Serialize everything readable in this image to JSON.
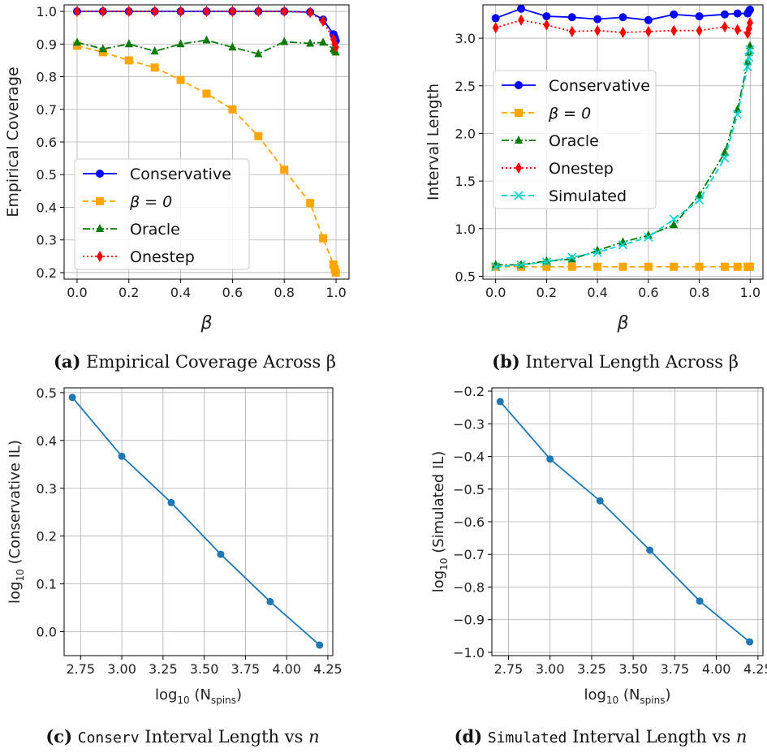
{
  "chart_data": [
    {
      "type": "line",
      "panel": "a",
      "xlabel": "β",
      "ylabel": "Empirical Coverage",
      "xlim": [
        -0.05,
        1.05
      ],
      "ylim": [
        0.18,
        1.02
      ],
      "xticks": [
        "0.0",
        "0.2",
        "0.4",
        "0.6",
        "0.8",
        "1.0"
      ],
      "yticks": [
        "0.2",
        "0.3",
        "0.4",
        "0.5",
        "0.6",
        "0.7",
        "0.8",
        "0.9",
        "1.0"
      ],
      "grid": true,
      "legend": "center-left",
      "x": [
        0,
        0.1,
        0.2,
        0.3,
        0.4,
        0.5,
        0.6,
        0.7,
        0.8,
        0.9,
        0.95,
        0.99,
        0.995,
        0.999
      ],
      "series": [
        {
          "name": "Conservative",
          "color": "#0000ff",
          "marker": "circle",
          "dash": "solid",
          "values": [
            1.0,
            1.0,
            1.0,
            1.0,
            1.0,
            1.0,
            1.0,
            1.0,
            1.0,
            0.998,
            0.975,
            0.93,
            0.92,
            0.91
          ]
        },
        {
          "name": "β = 0",
          "color": "#ffa500",
          "marker": "square",
          "dash": "dashed",
          "values": [
            0.895,
            0.875,
            0.85,
            0.828,
            0.79,
            0.748,
            0.7,
            0.618,
            0.515,
            0.413,
            0.305,
            0.225,
            0.21,
            0.2
          ]
        },
        {
          "name": "Oracle",
          "color": "#0a7a0a",
          "marker": "triangle",
          "dash": "dashdot",
          "values": [
            0.905,
            0.885,
            0.9,
            0.878,
            0.9,
            0.912,
            0.89,
            0.87,
            0.907,
            0.902,
            0.905,
            0.885,
            0.88,
            0.875
          ]
        },
        {
          "name": "Onestep",
          "color": "#ff0000",
          "marker": "diamond",
          "dash": "dotted",
          "values": [
            1.0,
            1.0,
            1.0,
            1.0,
            1.0,
            1.0,
            1.0,
            1.0,
            1.0,
            0.997,
            0.97,
            0.915,
            0.9,
            0.89
          ]
        }
      ],
      "caption": {
        "tag": "(a)",
        "text": "Empirical Coverage Across β"
      }
    },
    {
      "type": "line",
      "panel": "b",
      "xlabel": "β",
      "ylabel": "Interval Length",
      "xlim": [
        -0.05,
        1.05
      ],
      "ylim": [
        0.47,
        3.35
      ],
      "xticks": [
        "0.0",
        "0.2",
        "0.4",
        "0.6",
        "0.8",
        "1.0"
      ],
      "yticks": [
        "0.5",
        "1.0",
        "1.5",
        "2.0",
        "2.5",
        "3.0"
      ],
      "grid": true,
      "legend": "upper-left",
      "x": [
        0,
        0.1,
        0.2,
        0.3,
        0.4,
        0.5,
        0.6,
        0.7,
        0.8,
        0.9,
        0.95,
        0.99,
        0.995,
        0.999
      ],
      "series": [
        {
          "name": "Conservative",
          "color": "#0000ff",
          "marker": "circle",
          "dash": "solid",
          "values": [
            3.21,
            3.31,
            3.23,
            3.22,
            3.2,
            3.22,
            3.19,
            3.25,
            3.23,
            3.25,
            3.26,
            3.26,
            3.28,
            3.3
          ]
        },
        {
          "name": "β = 0",
          "color": "#ffa500",
          "marker": "square",
          "dash": "dashed",
          "values": [
            0.6,
            0.6,
            0.6,
            0.6,
            0.6,
            0.6,
            0.6,
            0.6,
            0.6,
            0.6,
            0.6,
            0.6,
            0.6,
            0.6
          ]
        },
        {
          "name": "Oracle",
          "color": "#0a7a0a",
          "marker": "triangle",
          "dash": "dashdot",
          "values": [
            0.62,
            0.62,
            0.66,
            0.68,
            0.77,
            0.86,
            0.93,
            1.04,
            1.35,
            1.8,
            2.25,
            2.75,
            2.85,
            2.92
          ]
        },
        {
          "name": "Onestep",
          "color": "#ff0000",
          "marker": "diamond",
          "dash": "dotted",
          "values": [
            3.11,
            3.19,
            3.14,
            3.07,
            3.08,
            3.06,
            3.07,
            3.08,
            3.08,
            3.12,
            3.09,
            3.05,
            3.1,
            3.16
          ]
        },
        {
          "name": "Simulated",
          "color": "#00d5d5",
          "marker": "x",
          "dash": "dashed",
          "values": [
            0.6,
            0.62,
            0.65,
            0.7,
            0.75,
            0.83,
            0.91,
            1.1,
            1.3,
            1.74,
            2.2,
            2.7,
            2.8,
            2.88
          ]
        }
      ],
      "caption": {
        "tag": "(b)",
        "text": "Interval Length Across β"
      }
    },
    {
      "type": "line",
      "panel": "c",
      "xlabel_parts": {
        "pre": "log",
        "sub": "10",
        "mid": " (N",
        "sub2": "spins",
        "post": ")"
      },
      "ylabel_parts": {
        "pre": "log",
        "sub": "10",
        "post": " (Conservative IL)"
      },
      "xlim": [
        2.65,
        4.28
      ],
      "ylim": [
        -0.05,
        0.51
      ],
      "xticks": [
        "2.75",
        "3.00",
        "3.25",
        "3.50",
        "3.75",
        "4.00",
        "4.25"
      ],
      "yticks": [
        "0.0",
        "0.1",
        "0.2",
        "0.3",
        "0.4",
        "0.5"
      ],
      "grid": true,
      "x": [
        2.7,
        3.0,
        3.3,
        3.6,
        3.9,
        4.2
      ],
      "series": [
        {
          "color": "#1f77b4",
          "marker": "circle",
          "dash": "solid",
          "values": [
            0.49,
            0.367,
            0.27,
            0.162,
            0.063,
            -0.028
          ]
        }
      ],
      "caption": {
        "tag": "(c)",
        "mono": "Conserv",
        "text": " Interval Length vs ",
        "var": "n"
      }
    },
    {
      "type": "line",
      "panel": "d",
      "xlabel_parts": {
        "pre": "log",
        "sub": "10",
        "mid": " (N",
        "sub2": "spins",
        "post": ")"
      },
      "ylabel_parts": {
        "pre": "log",
        "sub": "10",
        "post": " (Simulated IL)"
      },
      "xlim": [
        2.65,
        4.28
      ],
      "ylim": [
        -1.01,
        -0.19
      ],
      "xticks": [
        "2.75",
        "3.00",
        "3.25",
        "3.50",
        "3.75",
        "4.00",
        "4.25"
      ],
      "yticks": [
        "−1.0",
        "−0.9",
        "−0.8",
        "−0.7",
        "−0.6",
        "−0.5",
        "−0.4",
        "−0.3",
        "−0.2"
      ],
      "grid": true,
      "x": [
        2.7,
        3.0,
        3.3,
        3.6,
        3.9,
        4.2
      ],
      "series": [
        {
          "color": "#1f77b4",
          "marker": "circle",
          "dash": "solid",
          "values": [
            -0.232,
            -0.408,
            -0.536,
            -0.687,
            -0.843,
            -0.968
          ]
        }
      ],
      "caption": {
        "tag": "(d)",
        "mono": "Simulated",
        "text": " Interval Length vs ",
        "var": "n"
      }
    }
  ]
}
